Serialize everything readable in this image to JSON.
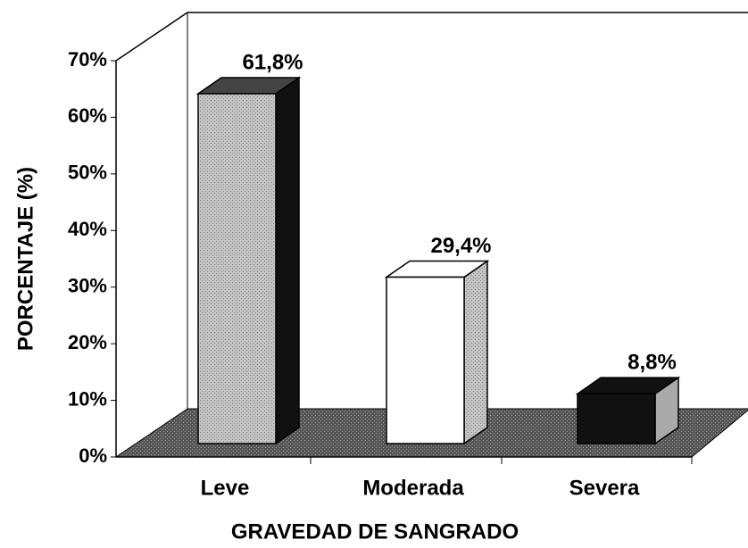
{
  "chart_data": {
    "type": "bar3d",
    "x_label": "GRAVEDAD DE SANGRADO",
    "y_label": "PORCENTAJE (%)",
    "categories": [
      "Leve",
      "Moderada",
      "Severa"
    ],
    "values": [
      61.8,
      29.4,
      8.8
    ],
    "value_labels": [
      "61,8%",
      "29,4%",
      "8,8%"
    ],
    "colors": [
      "#b8b8b8",
      "#ffffff",
      "#111111"
    ],
    "ylim": [
      0,
      70
    ],
    "yticks": [
      {
        "value": 0,
        "label": "0%"
      },
      {
        "value": 10,
        "label": "10%"
      },
      {
        "value": 20,
        "label": "20%"
      },
      {
        "value": 30,
        "label": "30%"
      },
      {
        "value": 40,
        "label": "40%"
      },
      {
        "value": 50,
        "label": "50%"
      },
      {
        "value": 60,
        "label": "60%"
      },
      {
        "value": 70,
        "label": "70%"
      }
    ]
  }
}
